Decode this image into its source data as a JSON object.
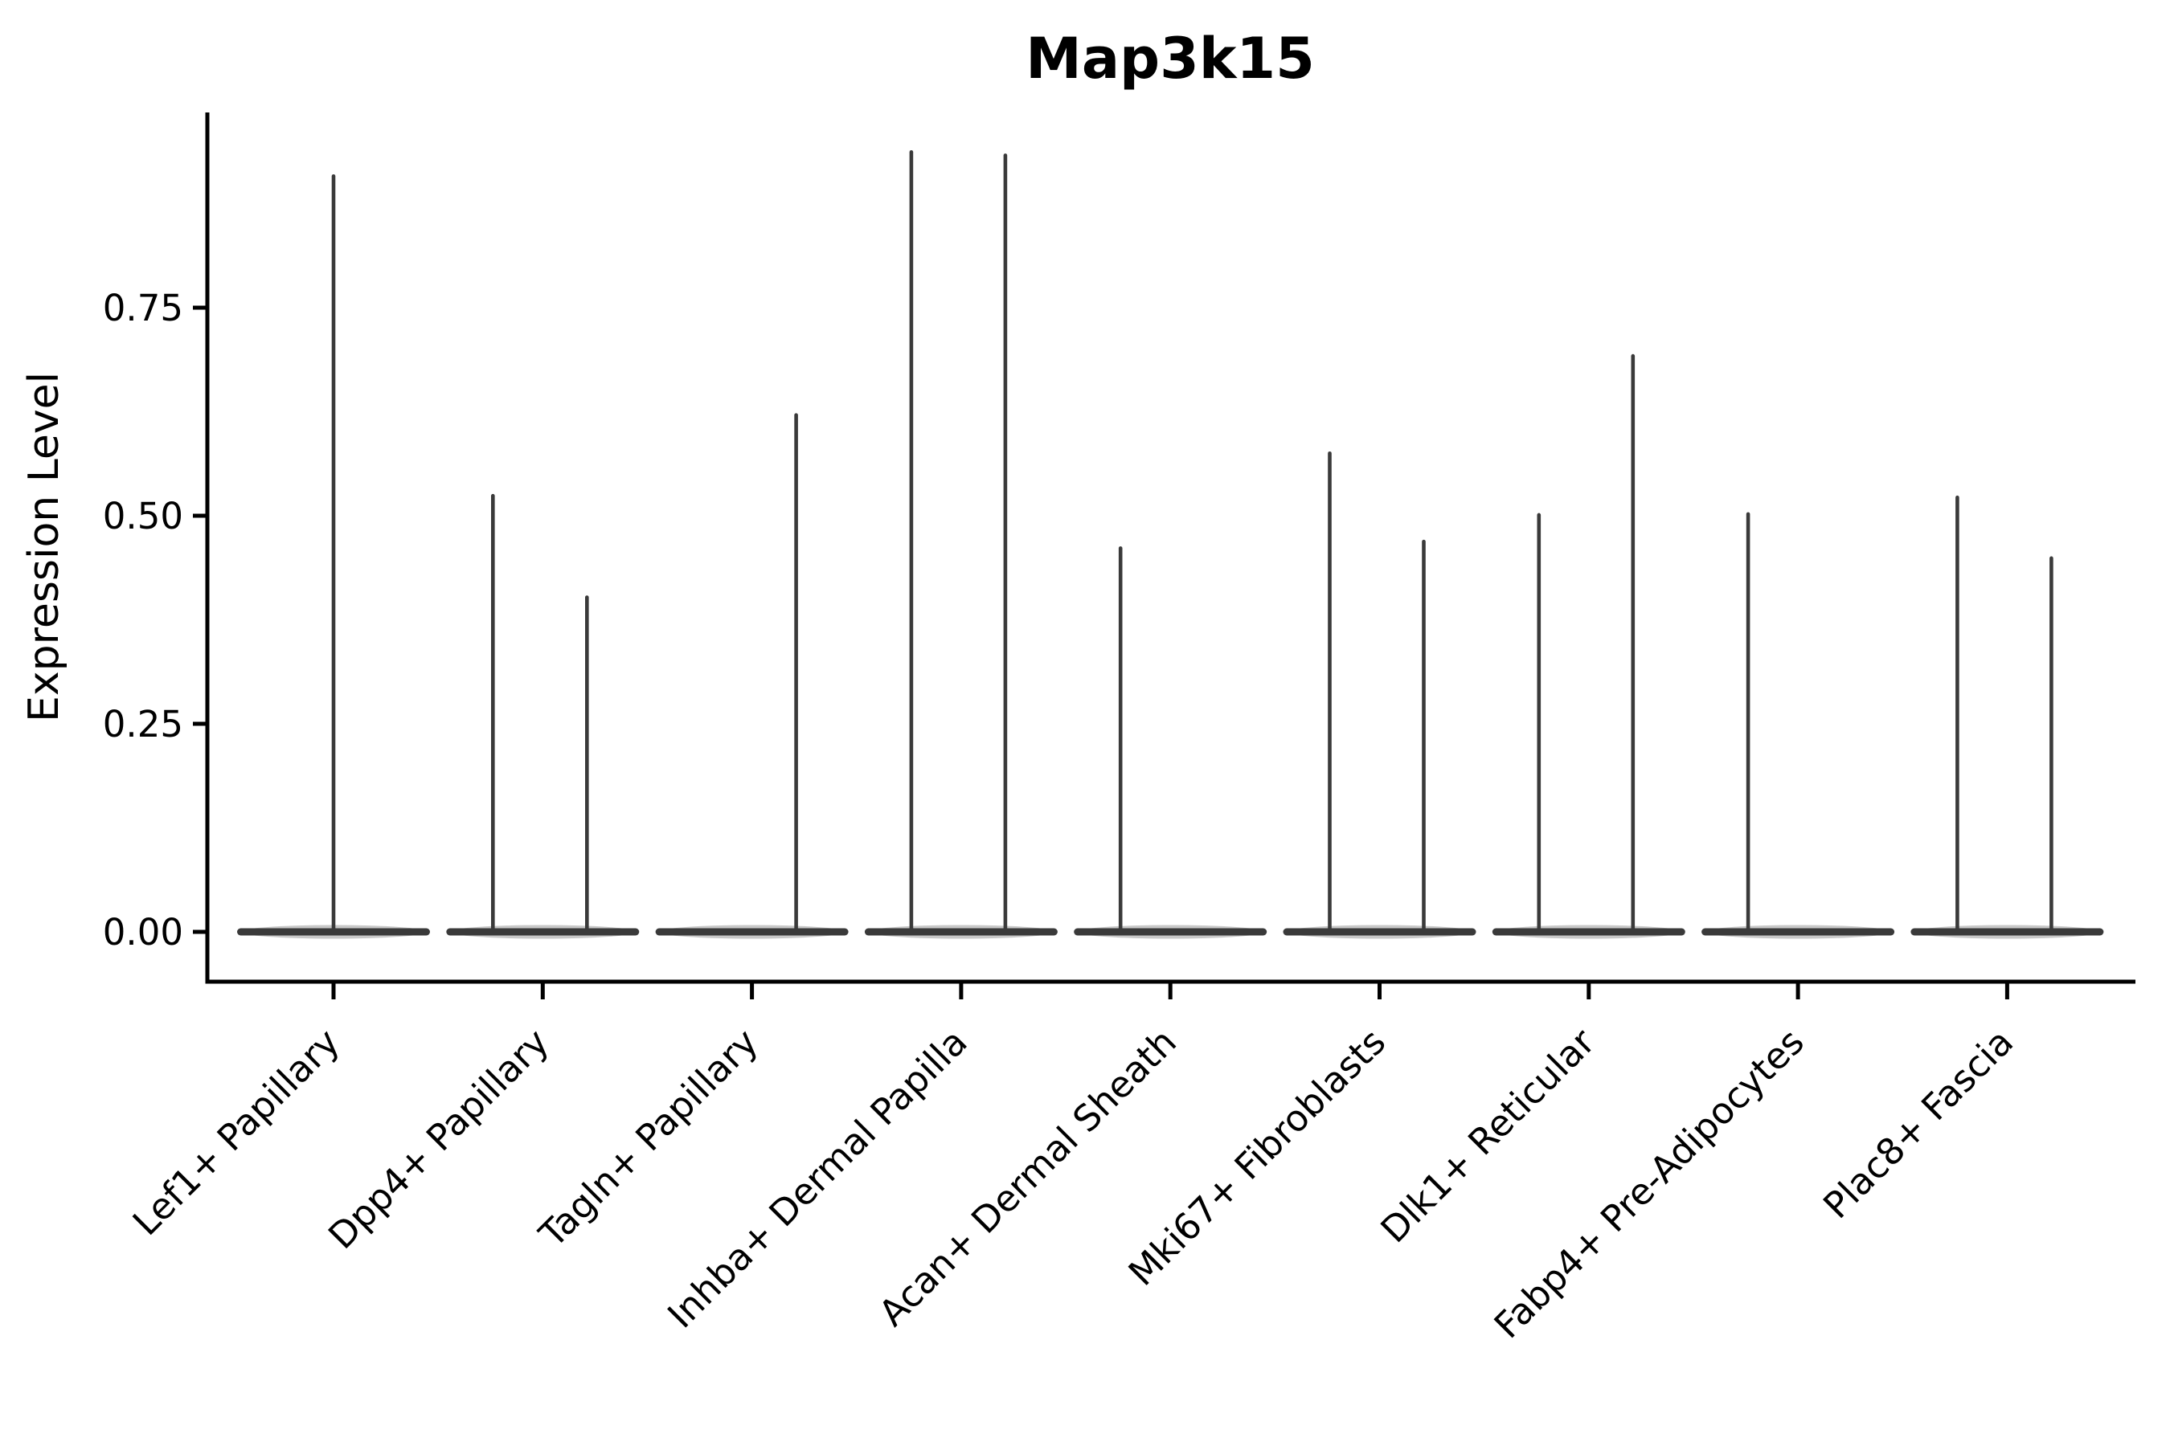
{
  "chart_data": {
    "type": "violin",
    "title": "Map3k15",
    "ylabel": "Expression Level",
    "xlabel": "",
    "grid": false,
    "legend": null,
    "axis_color": "#000000",
    "violin_color": "#3a3a3a",
    "ytick_labels": [
      "0.00",
      "0.25",
      "0.50",
      "0.75"
    ],
    "ytick_values": [
      0,
      0.25,
      0.5,
      0.75
    ],
    "ylim": [
      0,
      0.984
    ],
    "categories": [
      "Lef1+ Papillary",
      "Dpp4+ Papillary",
      "Tagln+ Papillary",
      "Inhba+ Dermal Papilla",
      "Acan+ Dermal Sheath",
      "Mki67+ Fibroblasts",
      "Dlk1+ Reticular",
      "Fabp4+ Pre-Adipocytes",
      "Plac8+ Fascia"
    ],
    "violins": [
      {
        "category": "Lef1+ Papillary",
        "spikes": [
          {
            "side": "center",
            "max": 0.908
          }
        ]
      },
      {
        "category": "Dpp4+ Papillary",
        "spikes": [
          {
            "side": "left",
            "max": 0.524
          },
          {
            "side": "right",
            "max": 0.402
          }
        ]
      },
      {
        "category": "Tagln+ Papillary",
        "spikes": [
          {
            "side": "right",
            "max": 0.621
          }
        ]
      },
      {
        "category": "Inhba+ Dermal Papilla",
        "spikes": [
          {
            "side": "left",
            "max": 0.937
          },
          {
            "side": "right",
            "max": 0.933
          }
        ]
      },
      {
        "category": "Acan+ Dermal Sheath",
        "spikes": [
          {
            "side": "left",
            "max": 0.461
          }
        ]
      },
      {
        "category": "Mki67+ Fibroblasts",
        "spikes": [
          {
            "side": "left",
            "max": 0.575
          },
          {
            "side": "right",
            "max": 0.469
          }
        ]
      },
      {
        "category": "Dlk1+ Reticular",
        "spikes": [
          {
            "side": "left",
            "max": 0.501
          },
          {
            "side": "right",
            "max": 0.692
          }
        ]
      },
      {
        "category": "Fabp4+ Pre-Adipocytes",
        "spikes": [
          {
            "side": "left",
            "max": 0.502
          }
        ]
      },
      {
        "category": "Plac8+ Fascia",
        "spikes": [
          {
            "side": "left",
            "max": 0.522
          },
          {
            "side": "right",
            "max": 0.449
          }
        ]
      }
    ]
  }
}
